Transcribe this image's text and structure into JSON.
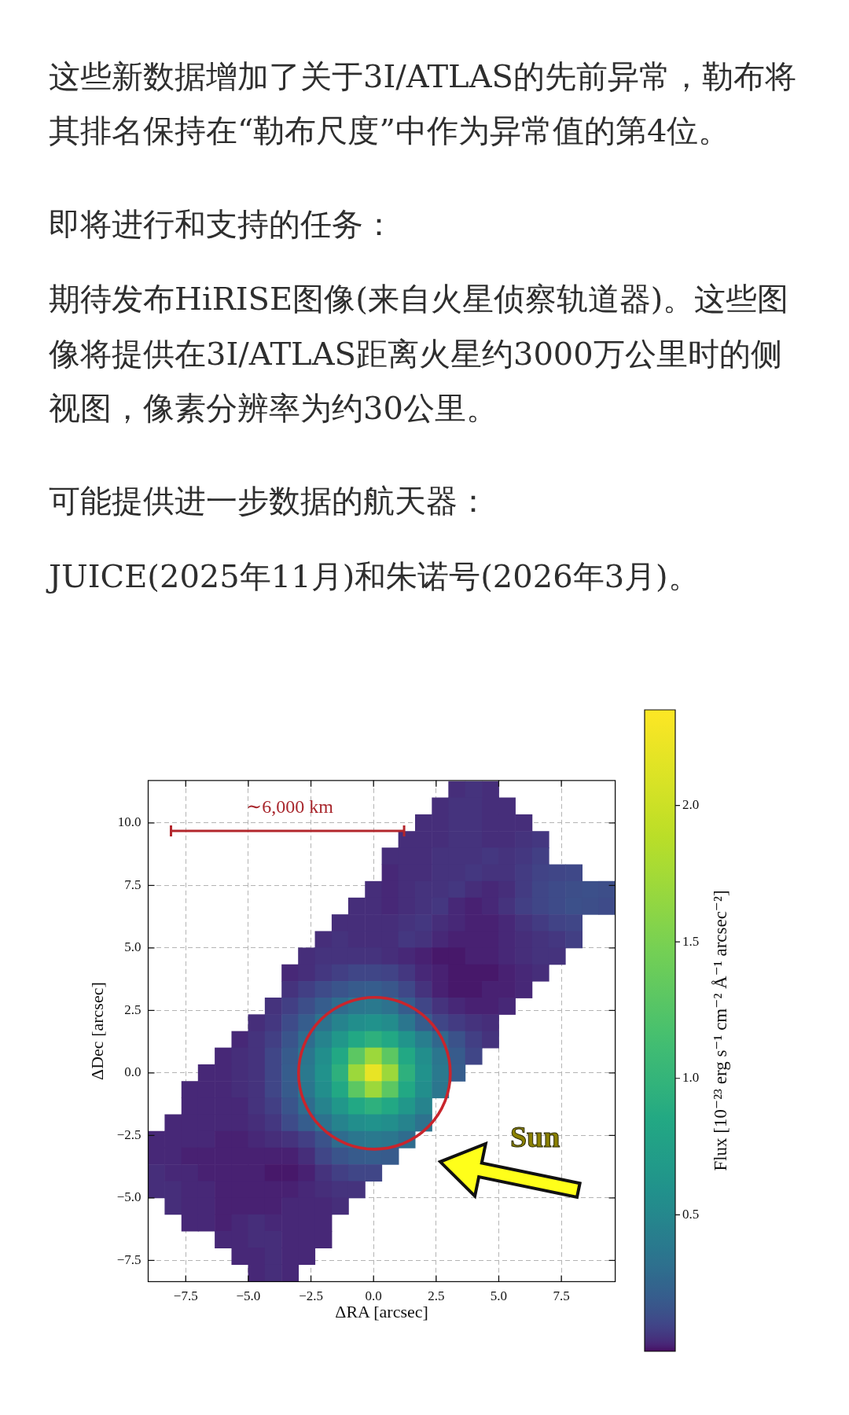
{
  "chart_data": {
    "type": "scatter",
    "marker": "square",
    "annotations": [
      "这些新数据增加了关于3I/ATLAS的先前异常，勒布将其排名保持在“勒布尺度”中作为异常值的第4位。",
      "即将进行和支持的任务：",
      "期待发布HiRISE图像(来自火星侦察轨道器)。这些图像将提供在3I/ATLAS距离火星约3000万公里时的侧视图，像素分辨率为约30公里。",
      "可能提供进一步数据的航天器：",
      "JUICE(2025年11月)和朱诺号(2026年3月)。",
      "∼6,000 km",
      "Sun"
    ],
    "xlabel": "ΔRA [arcsec]",
    "ylabel": "ΔDec [arcsec]",
    "clabel": "Flux [10⁻²³ erg s⁻¹ cm⁻² Å⁻¹ arcsec⁻²]",
    "xlim": [
      -9.0,
      9.65
    ],
    "ylim": [
      -8.35,
      11.7
    ],
    "xticks": [
      {
        "value": -7.5,
        "label": "−7.5"
      },
      {
        "value": -5,
        "label": "−5.0"
      },
      {
        "value": -2.5,
        "label": "−2.5"
      },
      {
        "value": 0,
        "label": "0.0"
      },
      2.5,
      {
        "value": 5,
        "label": "5.0"
      },
      7.5
    ],
    "yticks": [
      {
        "value": -7.5,
        "label": "−7.5"
      },
      {
        "value": -5,
        "label": "−5.0"
      },
      {
        "value": -2.5,
        "label": "−2.5"
      },
      {
        "value": 0,
        "label": "0.0"
      },
      2.5,
      {
        "value": 5,
        "label": "5.0"
      },
      7.5,
      {
        "value": 10,
        "label": "10.0"
      }
    ],
    "clim": [
      0,
      2.35
    ],
    "cticks": [
      0.5,
      {
        "value": 1,
        "label": "1.0"
      },
      1.5,
      {
        "value": 2,
        "label": "2.0"
      }
    ],
    "grid": true,
    "x": [
      3.33,
      4,
      4.67,
      2.67,
      3.33,
      4,
      4.67,
      5.33,
      2,
      2.67,
      3.33,
      4,
      4.67,
      5.33,
      6,
      1.33,
      2,
      2.67,
      3.33,
      4,
      4.67,
      5.33,
      6,
      6.67,
      0.67,
      1.33,
      2,
      2.67,
      3.33,
      4,
      4.67,
      5.33,
      6,
      6.67,
      0.67,
      1.33,
      2,
      2.67,
      3.33,
      4,
      4.67,
      5.33,
      6,
      6.67,
      7.33,
      8,
      0,
      0.67,
      1.33,
      2,
      2.67,
      3.33,
      4,
      4.67,
      5.33,
      6,
      6.67,
      7.33,
      8,
      8.67,
      9.33,
      -0.67,
      0,
      0.67,
      1.33,
      2,
      2.67,
      3.33,
      4,
      4.67,
      5.33,
      6,
      6.67,
      7.33,
      8,
      8.67,
      9.33,
      -1.33,
      -0.67,
      0,
      0.67,
      1.33,
      2,
      2.67,
      3.33,
      4,
      4.67,
      5.33,
      6,
      6.67,
      7.33,
      8,
      -2,
      -1.33,
      -0.67,
      0,
      0.67,
      1.33,
      2,
      2.67,
      3.33,
      4,
      4.67,
      5.33,
      6,
      6.67,
      7.33,
      8,
      -2.67,
      -2,
      -1.33,
      -0.67,
      0,
      0.67,
      1.33,
      2,
      2.67,
      3.33,
      4,
      4.67,
      5.33,
      6,
      6.67,
      7.33,
      -3.33,
      -2.67,
      -2,
      -1.33,
      -0.67,
      0,
      0.67,
      1.33,
      2,
      2.67,
      3.33,
      4,
      4.67,
      5.33,
      6,
      6.67,
      -3.33,
      -2.67,
      -2,
      -1.33,
      -0.67,
      0,
      0.67,
      1.33,
      2,
      2.67,
      3.33,
      4,
      4.67,
      5.33,
      6,
      -4,
      -3.33,
      -2.67,
      -2,
      -1.33,
      -0.67,
      0,
      0.67,
      1.33,
      2,
      2.67,
      3.33,
      4,
      4.67,
      5.33,
      -4.67,
      -4,
      -3.33,
      -2.67,
      -2,
      -1.33,
      -0.67,
      0,
      0.67,
      1.33,
      2,
      2.67,
      3.33,
      4,
      4.67,
      -5.33,
      -4.67,
      -4,
      -3.33,
      -2.67,
      -2,
      -1.33,
      -0.67,
      0,
      0.67,
      1.33,
      2,
      2.67,
      3.33,
      4,
      4.67,
      -6,
      -5.33,
      -4.67,
      -4,
      -3.33,
      -2.67,
      -2,
      -1.33,
      -0.67,
      0,
      0.67,
      1.33,
      2,
      2.67,
      3.33,
      4,
      -6.67,
      -6,
      -5.33,
      -4.67,
      -4,
      -3.33,
      -2.67,
      -2,
      -1.33,
      -0.67,
      0,
      0.67,
      1.33,
      2,
      2.67,
      3.33,
      -7.33,
      -6.67,
      -6,
      -5.33,
      -4.67,
      -4,
      -3.33,
      -2.67,
      -2,
      -1.33,
      -0.67,
      0,
      0.67,
      1.33,
      2,
      2.67,
      -7.33,
      -6.67,
      -6,
      -5.33,
      -4.67,
      -4,
      -3.33,
      -2.67,
      -2,
      -1.33,
      -0.67,
      0,
      0.67,
      1.33,
      2,
      -8,
      -7.33,
      -6.67,
      -6,
      -5.33,
      -4.67,
      -4,
      -3.33,
      -2.67,
      -2,
      -1.33,
      -0.67,
      0,
      0.67,
      1.33,
      2,
      -8.67,
      -8,
      -7.33,
      -6.67,
      -6,
      -5.33,
      -4.67,
      -4,
      -3.33,
      -2.67,
      -2,
      -1.33,
      -0.67,
      0,
      0.67,
      1.33,
      -8.67,
      -8,
      -7.33,
      -6.67,
      -6,
      -5.33,
      -4.67,
      -4,
      -3.33,
      -2.67,
      -2,
      -1.33,
      -0.67,
      0,
      0.67,
      -8.67,
      -8,
      -7.33,
      -6.67,
      -6,
      -5.33,
      -4.67,
      -4,
      -3.33,
      -2.67,
      -2,
      -1.33,
      -0.67,
      0,
      -8.67,
      -8,
      -7.33,
      -6.67,
      -6,
      -5.33,
      -4.67,
      -4,
      -3.33,
      -2.67,
      -2,
      -1.33,
      -0.67,
      -8,
      -7.33,
      -6.67,
      -6,
      -5.33,
      -4.67,
      -4,
      -3.33,
      -2.67,
      -2,
      -1.33,
      -7.33,
      -6.67,
      -6,
      -5.33,
      -4.67,
      -4,
      -3.33,
      -2.67,
      -2,
      -6,
      -5.33,
      -4.67,
      -4,
      -3.33,
      -2.67,
      -2,
      -5.33,
      -4.67,
      -4,
      -3.33,
      -2.67,
      -4.67,
      -4,
      -3.33
    ],
    "values": [
      11.33,
      11.33,
      11.33,
      10.67,
      10.67,
      10.67,
      10.67,
      10.67,
      10,
      10,
      10,
      10,
      10,
      10,
      10,
      9.33,
      9.33,
      9.33,
      9.33,
      9.33,
      9.33,
      9.33,
      9.33,
      9.33,
      8.67,
      8.67,
      8.67,
      8.67,
      8.67,
      8.67,
      8.67,
      8.67,
      8.67,
      8.67,
      8,
      8,
      8,
      8,
      8,
      8,
      8,
      8,
      8,
      8,
      8,
      8,
      7.33,
      7.33,
      7.33,
      7.33,
      7.33,
      7.33,
      7.33,
      7.33,
      7.33,
      7.33,
      7.33,
      7.33,
      7.33,
      7.33,
      7.33,
      6.67,
      6.67,
      6.67,
      6.67,
      6.67,
      6.67,
      6.67,
      6.67,
      6.67,
      6.67,
      6.67,
      6.67,
      6.67,
      6.67,
      6.67,
      6.67,
      6,
      6,
      6,
      6,
      6,
      6,
      6,
      6,
      6,
      6,
      6,
      6,
      6,
      6,
      6,
      5.33,
      5.33,
      5.33,
      5.33,
      5.33,
      5.33,
      5.33,
      5.33,
      5.33,
      5.33,
      5.33,
      5.33,
      5.33,
      5.33,
      5.33,
      5.33,
      4.67,
      4.67,
      4.67,
      4.67,
      4.67,
      4.67,
      4.67,
      4.67,
      4.67,
      4.67,
      4.67,
      4.67,
      4.67,
      4.67,
      4.67,
      4.67,
      4,
      4,
      4,
      4,
      4,
      4,
      4,
      4,
      4,
      4,
      4,
      4,
      4,
      4,
      4,
      4,
      3.33,
      3.33,
      3.33,
      3.33,
      3.33,
      3.33,
      3.33,
      3.33,
      3.33,
      3.33,
      3.33,
      3.33,
      3.33,
      3.33,
      3.33,
      2.67,
      2.67,
      2.67,
      2.67,
      2.67,
      2.67,
      2.67,
      2.67,
      2.67,
      2.67,
      2.67,
      2.67,
      2.67,
      2.67,
      2.67,
      2,
      2,
      2,
      2,
      2,
      2,
      2,
      2,
      2,
      2,
      2,
      2,
      2,
      2,
      2,
      1.33,
      1.33,
      1.33,
      1.33,
      1.33,
      1.33,
      1.33,
      1.33,
      1.33,
      1.33,
      1.33,
      1.33,
      1.33,
      1.33,
      1.33,
      1.33,
      0.67,
      0.67,
      0.67,
      0.67,
      0.67,
      0.67,
      0.67,
      0.67,
      0.67,
      0.67,
      0.67,
      0.67,
      0.67,
      0.67,
      0.67,
      0.67,
      0,
      0,
      0,
      0,
      0,
      0,
      0,
      0,
      0,
      0,
      0,
      0,
      0,
      0,
      0,
      0,
      -0.67,
      -0.67,
      -0.67,
      -0.67,
      -0.67,
      -0.67,
      -0.67,
      -0.67,
      -0.67,
      -0.67,
      -0.67,
      -0.67,
      -0.67,
      -0.67,
      -0.67,
      -0.67,
      -1.33,
      -1.33,
      -1.33,
      -1.33,
      -1.33,
      -1.33,
      -1.33,
      -1.33,
      -1.33,
      -1.33,
      -1.33,
      -1.33,
      -1.33,
      -1.33,
      -1.33,
      -2,
      -2,
      -2,
      -2,
      -2,
      -2,
      -2,
      -2,
      -2,
      -2,
      -2,
      -2,
      -2,
      -2,
      -2,
      -2,
      -2.67,
      -2.67,
      -2.67,
      -2.67,
      -2.67,
      -2.67,
      -2.67,
      -2.67,
      -2.67,
      -2.67,
      -2.67,
      -2.67,
      -2.67,
      -2.67,
      -2.67,
      -2.67,
      -3.33,
      -3.33,
      -3.33,
      -3.33,
      -3.33,
      -3.33,
      -3.33,
      -3.33,
      -3.33,
      -3.33,
      -3.33,
      -3.33,
      -3.33,
      -3.33,
      -3.33,
      -4,
      -4,
      -4,
      -4,
      -4,
      -4,
      -4,
      -4,
      -4,
      -4,
      -4,
      -4,
      -4,
      -4,
      -4.67,
      -4.67,
      -4.67,
      -4.67,
      -4.67,
      -4.67,
      -4.67,
      -4.67,
      -4.67,
      -4.67,
      -4.67,
      -4.67,
      -4.67,
      -5.33,
      -5.33,
      -5.33,
      -5.33,
      -5.33,
      -5.33,
      -5.33,
      -5.33,
      -5.33,
      -5.33,
      -5.33,
      -6,
      -6,
      -6,
      -6,
      -6,
      -6,
      -6,
      -6,
      -6,
      -6.67,
      -6.67,
      -6.67,
      -6.67,
      -6.67,
      -6.67,
      -6.67,
      -7.33,
      -7.33,
      -7.33,
      -7.33,
      -7.33,
      -8,
      -8,
      -8
    ],
    "cvalues": [
      0.04,
      0.05,
      0.04,
      0.04,
      0.05,
      0.05,
      0.04,
      0.04,
      0.04,
      0.04,
      0.05,
      0.05,
      0.04,
      0.04,
      0.04,
      0.04,
      0.04,
      0.04,
      0.05,
      0.05,
      0.04,
      0.04,
      0.05,
      0.06,
      0.04,
      0.04,
      0.04,
      0.05,
      0.05,
      0.05,
      0.06,
      0.05,
      0.06,
      0.08,
      0.03,
      0.04,
      0.04,
      0.05,
      0.05,
      0.06,
      0.05,
      0.05,
      0.07,
      0.09,
      0.1,
      0.11,
      0.04,
      0.03,
      0.04,
      0.05,
      0.05,
      0.06,
      0.04,
      0.03,
      0.04,
      0.07,
      0.1,
      0.12,
      0.13,
      0.14,
      0.13,
      0.04,
      0.04,
      0.03,
      0.04,
      0.05,
      0.06,
      0.03,
      0.02,
      0.03,
      0.05,
      0.08,
      0.1,
      0.12,
      0.14,
      0.13,
      0.12,
      0.04,
      0.04,
      0.04,
      0.04,
      0.05,
      0.06,
      0.04,
      0.03,
      0.02,
      0.02,
      0.03,
      0.05,
      0.07,
      0.09,
      0.1,
      0.04,
      0.05,
      0.04,
      0.04,
      0.04,
      0.06,
      0.05,
      0.03,
      0.02,
      0.02,
      0.02,
      0.03,
      0.04,
      0.05,
      0.06,
      0.08,
      0.04,
      0.05,
      0.05,
      0.05,
      0.05,
      0.04,
      0.03,
      0.02,
      0.01,
      0.01,
      0.02,
      0.02,
      0.03,
      0.04,
      0.05,
      0.05,
      0.03,
      0.04,
      0.06,
      0.08,
      0.1,
      0.1,
      0.09,
      0.06,
      0.03,
      0.02,
      0.01,
      0.01,
      0.01,
      0.02,
      0.03,
      0.04,
      0.05,
      0.08,
      0.12,
      0.16,
      0.19,
      0.2,
      0.17,
      0.11,
      0.05,
      0.02,
      0.01,
      0.01,
      0.02,
      0.02,
      0.03,
      0.05,
      0.08,
      0.13,
      0.2,
      0.29,
      0.36,
      0.38,
      0.33,
      0.2,
      0.1,
      0.05,
      0.03,
      0.02,
      0.02,
      0.03,
      0.04,
      0.06,
      0.12,
      0.2,
      0.33,
      0.46,
      0.56,
      0.6,
      0.54,
      0.36,
      0.2,
      0.1,
      0.07,
      0.05,
      0.04,
      0.03,
      0.05,
      0.08,
      0.16,
      0.29,
      0.46,
      0.65,
      0.85,
      0.95,
      0.85,
      0.62,
      0.42,
      0.26,
      0.15,
      0.08,
      0.05,
      0.03,
      0.04,
      0.05,
      0.1,
      0.19,
      0.36,
      0.56,
      0.85,
      1.3,
      1.7,
      1.3,
      0.85,
      0.56,
      0.36,
      0.19,
      0.1,
      0.03,
      0.03,
      0.04,
      0.05,
      0.1,
      0.2,
      0.38,
      0.6,
      0.95,
      1.7,
      2.2,
      1.7,
      0.95,
      0.6,
      0.38,
      0.2,
      0.03,
      0.03,
      0.03,
      0.04,
      0.05,
      0.1,
      0.19,
      0.36,
      0.56,
      0.85,
      1.3,
      1.7,
      1.3,
      0.85,
      0.56,
      0.36,
      0.03,
      0.03,
      0.03,
      0.03,
      0.05,
      0.08,
      0.16,
      0.29,
      0.46,
      0.65,
      0.85,
      0.95,
      0.85,
      0.65,
      0.46,
      0.03,
      0.03,
      0.03,
      0.03,
      0.03,
      0.04,
      0.06,
      0.12,
      0.2,
      0.33,
      0.46,
      0.56,
      0.6,
      0.56,
      0.46,
      0.33,
      0.03,
      0.03,
      0.03,
      0.03,
      0.02,
      0.02,
      0.03,
      0.04,
      0.05,
      0.08,
      0.15,
      0.29,
      0.36,
      0.38,
      0.36,
      0.29,
      0.03,
      0.03,
      0.02,
      0.02,
      0.02,
      0.02,
      0.02,
      0.02,
      0.02,
      0.04,
      0.1,
      0.16,
      0.19,
      0.2,
      0.19,
      0.04,
      0.03,
      0.03,
      0.02,
      0.02,
      0.02,
      0.02,
      0.01,
      0.01,
      0.02,
      0.05,
      0.08,
      0.1,
      0.1,
      0.04,
      0.04,
      0.03,
      0.03,
      0.02,
      0.02,
      0.02,
      0.02,
      0.02,
      0.03,
      0.04,
      0.05,
      0.05,
      0.04,
      0.03,
      0.03,
      0.02,
      0.02,
      0.02,
      0.02,
      0.03,
      0.03,
      0.03,
      0.04,
      0.03,
      0.03,
      0.02,
      0.03,
      0.04,
      0.03,
      0.03,
      0.03,
      0.03,
      0.03,
      0.03,
      0.04,
      0.04,
      0.03,
      0.03,
      0.03,
      0.03,
      0.03,
      0.04,
      0.03,
      0.03,
      0.03,
      0.04,
      0.03
    ]
  }
}
